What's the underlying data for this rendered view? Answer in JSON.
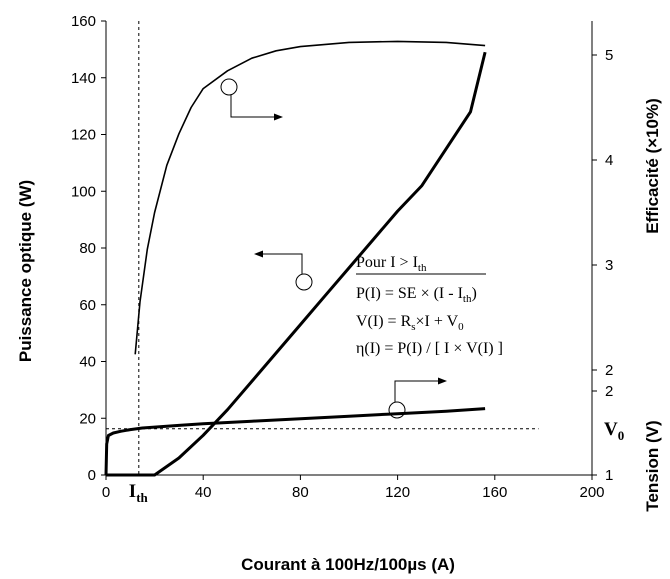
{
  "chart_data": {
    "type": "line",
    "title": "",
    "xlabel": "Courant à 100Hz/100µs (A)",
    "xlim": [
      0,
      200
    ],
    "xticks": [
      "0",
      "40",
      "80",
      "120",
      "160",
      "200"
    ],
    "ylabel_left": "Puissance optique (W)",
    "ylim_left": [
      0,
      160
    ],
    "yticks_left": [
      "0",
      "20",
      "40",
      "60",
      "80",
      "100",
      "120",
      "140",
      "160"
    ],
    "ylabel_right_eff": "Efficacité (×10%)",
    "yticks_eff": [
      "1",
      "2",
      "3",
      "4",
      "5"
    ],
    "ylabel_right_volt": "Tension (V)",
    "yticks_volt": [
      "1",
      "2"
    ],
    "grid": false,
    "series": [
      {
        "axis": "left",
        "x": [
          0,
          20,
          30,
          40,
          50,
          60,
          70,
          80,
          90,
          100,
          110,
          120,
          130,
          140,
          150,
          156
        ],
        "y": [
          0,
          0,
          6,
          14,
          23,
          33,
          43,
          53,
          63,
          73,
          83,
          93,
          102,
          115,
          128,
          149
        ]
      },
      {
        "axis": "efficiency",
        "x": [
          12,
          14,
          17,
          20,
          25,
          30,
          35,
          40,
          50,
          60,
          70,
          80,
          100,
          120,
          140,
          156
        ],
        "y": [
          2.15,
          2.65,
          3.15,
          3.5,
          3.95,
          4.25,
          4.5,
          4.68,
          4.85,
          4.97,
          5.04,
          5.08,
          5.12,
          5.13,
          5.12,
          5.09
        ]
      },
      {
        "axis": "voltage",
        "x": [
          0,
          0.3,
          1,
          3,
          6,
          10,
          15,
          20,
          30,
          40,
          60,
          80,
          100,
          120,
          140,
          156
        ],
        "y": [
          1.0,
          1.37,
          1.47,
          1.5,
          1.52,
          1.54,
          1.56,
          1.57,
          1.59,
          1.61,
          1.64,
          1.67,
          1.7,
          1.73,
          1.76,
          1.79
        ]
      }
    ],
    "threshold": {
      "label": "I",
      "sub": "th",
      "x": 13.5
    },
    "v0": {
      "label": "V",
      "sub": "0",
      "value": 1.55
    },
    "annotation": {
      "header": "Pour I > I",
      "header_sub": "th",
      "eq1_a": "P(I) = SE × (I - I",
      "eq1_sub": "th",
      "eq1_b": ")",
      "eq2_a": "V(I) = R",
      "eq2_sub": "s",
      "eq2_b": "×I + V",
      "eq2_sub2": "0",
      "eq3": "η(I) = P(I) / [ I × V(I) ]"
    }
  }
}
